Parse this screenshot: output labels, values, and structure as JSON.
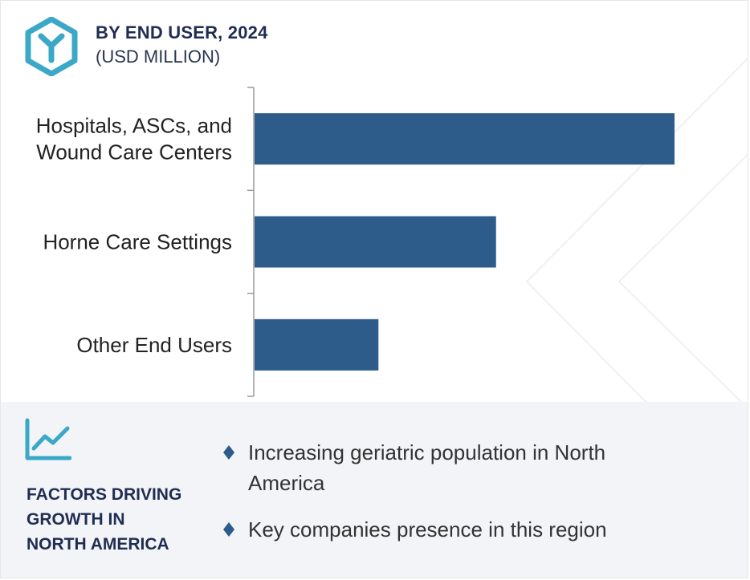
{
  "header": {
    "title": "BY END USER, 2024",
    "subtitle": "(USD MILLION)",
    "logo_icon": "y-hexagon-logo-icon"
  },
  "colors": {
    "bar": "#2d5c8a",
    "title": "#1f2d52",
    "logo": "#3aa8c6",
    "panel": "#f3f4f7",
    "bullet": "#2d5c8a"
  },
  "chart_data": {
    "type": "bar",
    "orientation": "horizontal",
    "title": "BY END USER, 2024",
    "subtitle": "(USD MILLION)",
    "categories": [
      [
        "Hospitals, ASCs, and",
        "Wound Care Centers"
      ],
      [
        "Horne Care Settings"
      ],
      [
        "Other End Users"
      ]
    ],
    "values": [
      100,
      57.5,
      29.5
    ],
    "xlim": [
      0,
      100
    ],
    "value_axis_shown": false,
    "data_labels_shown": false,
    "grid": false,
    "legend": "none"
  },
  "factors": {
    "icon": "line-chart-icon",
    "heading_lines": [
      "FACTORS DRIVING",
      "GROWTH IN",
      "NORTH AMERICA"
    ],
    "items": [
      "Increasing geriatric population in North America",
      "Key companies presence in this region"
    ]
  }
}
